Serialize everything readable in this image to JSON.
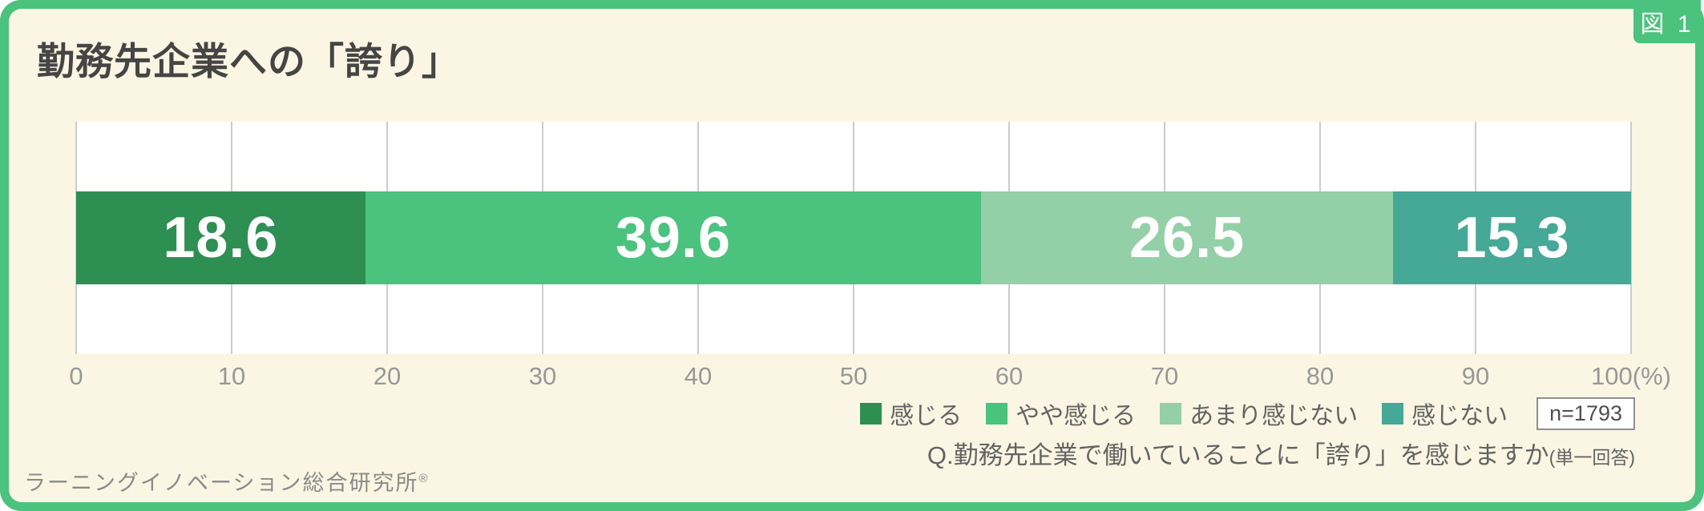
{
  "card": {
    "accent_color": "#4bc27e",
    "background_color": "#fbf6e3",
    "figure_label": "図 1"
  },
  "title": "勤務先企業への「誇り」",
  "chart_data": {
    "type": "bar",
    "stacked": true,
    "orientation": "horizontal",
    "title": "勤務先企業への「誇り」",
    "categories": [
      "勤務先企業への「誇り」"
    ],
    "series": [
      {
        "name": "感じる",
        "value": 18.6,
        "color": "#2e8f53"
      },
      {
        "name": "やや感じる",
        "value": 39.6,
        "color": "#4bc27e"
      },
      {
        "name": "あまり感じない",
        "value": 26.5,
        "color": "#93d0a8"
      },
      {
        "name": "感じない",
        "value": 15.3,
        "color": "#46a897"
      }
    ],
    "xlim": [
      0,
      100
    ],
    "x_ticks": [
      {
        "value": 0,
        "label": "0"
      },
      {
        "value": 10,
        "label": "10"
      },
      {
        "value": 20,
        "label": "20"
      },
      {
        "value": 30,
        "label": "30"
      },
      {
        "value": 40,
        "label": "40"
      },
      {
        "value": 50,
        "label": "50"
      },
      {
        "value": 60,
        "label": "60"
      },
      {
        "value": 70,
        "label": "70"
      },
      {
        "value": 80,
        "label": "80"
      },
      {
        "value": 90,
        "label": "90"
      },
      {
        "value": 100,
        "label": "100(%)"
      }
    ],
    "grid": true,
    "gridline_color": "#cccccc",
    "plot_background": "#ffffff",
    "legend_position": "bottom-right",
    "sample_size_label": "n=1793",
    "question": "Q.勤務先企業で働いていることに「誇り」を感じますか",
    "question_suffix": "(単一回答)"
  },
  "footer": {
    "text": "ラーニングイノベーション総合研究所",
    "mark": "®"
  }
}
